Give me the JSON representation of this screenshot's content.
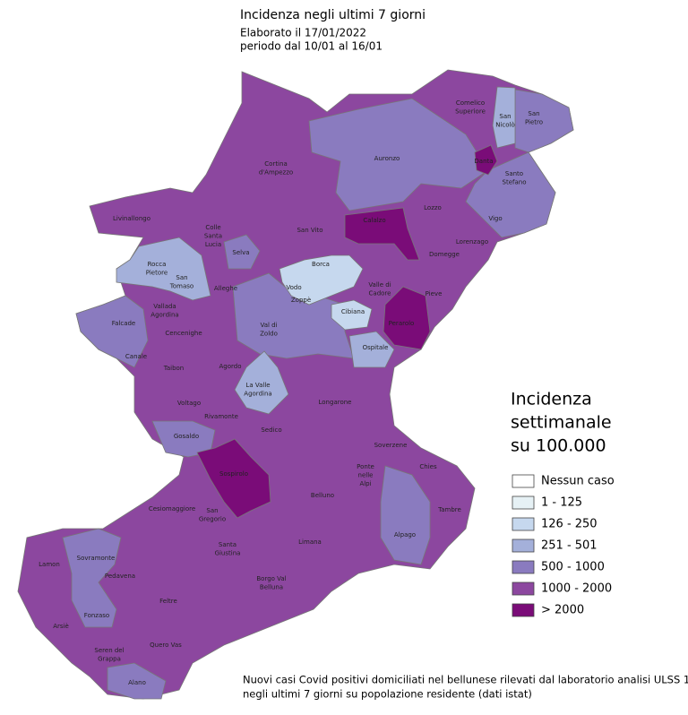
{
  "header": {
    "title": "Incidenza negli ultimi 7 giorni",
    "lines": [
      "Elaborato il 17/01/2022",
      "periodo dal 10/01 al 16/01"
    ]
  },
  "legend": {
    "title": [
      "Incidenza",
      "settimanale",
      "su 100.000"
    ],
    "classes": [
      {
        "label": "Nessun caso",
        "color": "#ffffff"
      },
      {
        "label": "1 - 125",
        "color": "#e6f1f5"
      },
      {
        "label": "126 - 250",
        "color": "#c6d8ee"
      },
      {
        "label": "251 - 501",
        "color": "#a4b0da"
      },
      {
        "label": "500 - 1000",
        "color": "#8a7bbf"
      },
      {
        "label": "1000 - 2000",
        "color": "#8c479f"
      },
      {
        "label": "> 2000",
        "color": "#7a0c78"
      }
    ]
  },
  "map": {
    "labels": [
      [
        "Comelico",
        "Superiore"
      ],
      [
        "San",
        "Nicolò"
      ],
      [
        "San",
        "Pietro"
      ],
      [
        "Auronzo"
      ],
      [
        "Cortina",
        "d'Ampezzo"
      ],
      [
        "Danta"
      ],
      [
        "Santo",
        "Stefano"
      ],
      [
        "Lozzo"
      ],
      [
        "Calalzo"
      ],
      [
        "Vigo"
      ],
      [
        "Livinallongo"
      ],
      [
        "Colle",
        "Santa",
        "Lucia"
      ],
      [
        "San Vito"
      ],
      [
        "Lorenzago"
      ],
      [
        "Selva"
      ],
      [
        "Domegge"
      ],
      [
        "Borca"
      ],
      [
        "Rocca",
        "Pietore"
      ],
      [
        "Vodo"
      ],
      [
        "San",
        "Tomaso"
      ],
      [
        "Alleghe"
      ],
      [
        "Valle di",
        "Cadore"
      ],
      [
        "Zoppè"
      ],
      [
        "Pieve"
      ],
      [
        "Vallada",
        "Agordina"
      ],
      [
        "Cibiana"
      ],
      [
        "Falcade"
      ],
      [
        "Val di",
        "Zoldo"
      ],
      [
        "Perarolo"
      ],
      [
        "Cencenighe"
      ],
      [
        "Ospitale"
      ],
      [
        "Canale"
      ],
      [
        "Taibon"
      ],
      [
        "Agordo"
      ],
      [
        "La Valle",
        "Agordina"
      ],
      [
        "Longarone"
      ],
      [
        "Voltago"
      ],
      [
        "Rivamonte"
      ],
      [
        "Sedico"
      ],
      [
        "Gosaldo"
      ],
      [
        "Soverzene"
      ],
      [
        "Chies"
      ],
      [
        "Sospirolo"
      ],
      [
        "Ponte",
        "nelle",
        "Alpi"
      ],
      [
        "Belluno"
      ],
      [
        "Tambre"
      ],
      [
        "Cesiomaggiore"
      ],
      [
        "San",
        "Gregorio"
      ],
      [
        "Santa",
        "Giustina"
      ],
      [
        "Limana"
      ],
      [
        "Alpago"
      ],
      [
        "Lamon"
      ],
      [
        "Sovramonte"
      ],
      [
        "Pedavena"
      ],
      [
        "Borgo Val",
        "Belluna"
      ],
      [
        "Feltre"
      ],
      [
        "Fonzaso"
      ],
      [
        "Arsiè"
      ],
      [
        "Quero Vas"
      ],
      [
        "Seren del",
        "Grappa"
      ],
      [
        "Alano"
      ]
    ]
  },
  "footnote": [
    "Nuovi casi Covid positivi domiciliati nel bellunese rilevati dal laboratorio analisi ULSS 1",
    "negli ultimi 7 giorni su popolazione residente (dati istat)"
  ]
}
